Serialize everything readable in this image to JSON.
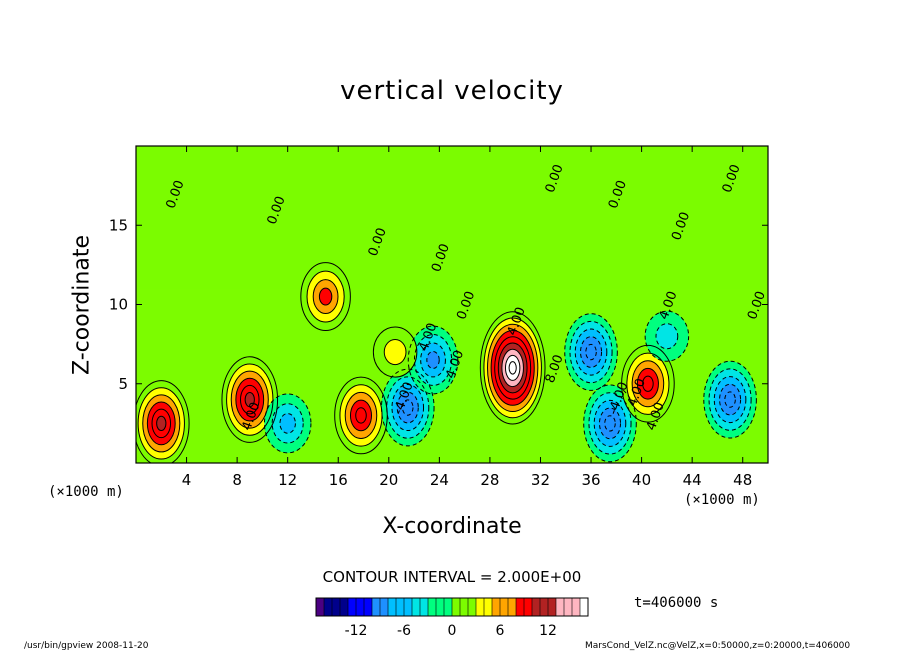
{
  "page": {
    "title": "vertical velocity",
    "xlabel": "X-coordinate",
    "ylabel": "Z-coordinate",
    "xunit_left": "(×1000 m)",
    "xunit_right": "(×1000 m)",
    "contour_interval": "CONTOUR INTERVAL = 2.000E+00",
    "time_label": "t=406000 s",
    "footer_left": "/usr/bin/gpview   2008-11-20",
    "footer_right": "MarsCond_VelZ.nc@VelZ,x=0:50000,z=0:20000,t=406000"
  },
  "chart_data": {
    "type": "heatmap",
    "title": "vertical velocity",
    "xlabel": "X-coordinate",
    "ylabel": "Z-coordinate",
    "xlim": [
      0,
      50
    ],
    "ylim": [
      0,
      20
    ],
    "x_ticks": [
      4,
      8,
      12,
      16,
      20,
      24,
      28,
      32,
      36,
      40,
      44,
      48
    ],
    "y_ticks": [
      5,
      10,
      15
    ],
    "contour_interval": 2.0,
    "colorbar": {
      "range": [
        -17,
        17
      ],
      "ticks": [
        -12,
        -6,
        0,
        6,
        12
      ],
      "colors": [
        "#4b0082",
        "#00008b",
        "#0000ff",
        "#1e90ff",
        "#00bfff",
        "#00e5e5",
        "#00ff7f",
        "#7cfc00",
        "#ffff00",
        "#ffa500",
        "#ff0000",
        "#b22222",
        "#ffb6c1",
        "#ffffff"
      ]
    },
    "contour_labels": [
      "0.00",
      "0.00",
      "0.00",
      "0.00",
      "0.00",
      "0.00",
      "0.00",
      "0.00",
      "0.00",
      "0.00",
      "4.00",
      "4.00",
      "4.00",
      "4.00",
      "4.00",
      "8.00",
      "-4.00",
      "-4.00",
      "-4.00",
      "4.00"
    ],
    "features": [
      {
        "x": 2.0,
        "z": 2.5,
        "value": 10
      },
      {
        "x": 9.0,
        "z": 4.0,
        "value": 10
      },
      {
        "x": 12.0,
        "z": 2.5,
        "value": -4
      },
      {
        "x": 17.8,
        "z": 3.0,
        "value": 8
      },
      {
        "x": 21.5,
        "z": 3.5,
        "value": -9
      },
      {
        "x": 23.5,
        "z": 6.5,
        "value": -7
      },
      {
        "x": 15.0,
        "z": 10.5,
        "value": 6
      },
      {
        "x": 29.8,
        "z": 6.0,
        "value": 17
      },
      {
        "x": 36.0,
        "z": 7.0,
        "value": -9
      },
      {
        "x": 37.5,
        "z": 2.5,
        "value": -8
      },
      {
        "x": 40.5,
        "z": 5.0,
        "value": 9
      },
      {
        "x": 47.0,
        "z": 4.0,
        "value": -9
      },
      {
        "x": 20.5,
        "z": 7.0,
        "value": 3
      },
      {
        "x": 42.0,
        "z": 8.0,
        "value": -3
      }
    ]
  }
}
